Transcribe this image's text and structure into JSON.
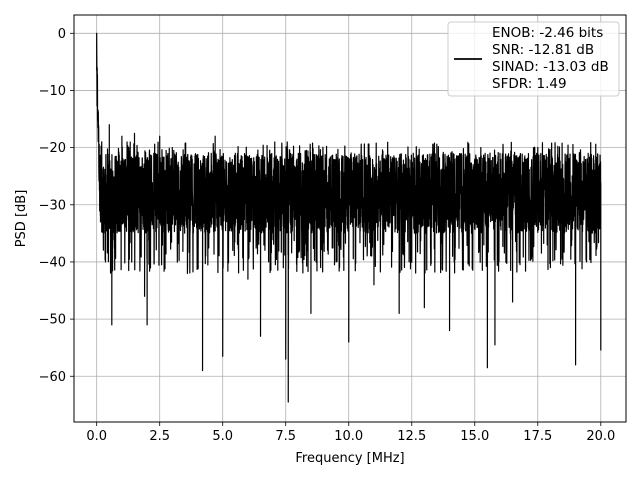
{
  "chart_data": {
    "type": "line",
    "title": "",
    "xlabel": "Frequency [MHz]",
    "ylabel": "PSD [dB]",
    "xlim": [
      -0.9,
      21.0
    ],
    "ylim": [
      -68.0,
      3.2
    ],
    "xticks": [
      0.0,
      2.5,
      5.0,
      7.5,
      10.0,
      12.5,
      15.0,
      17.5,
      20.0
    ],
    "xtick_labels": [
      "0.0",
      "2.5",
      "5.0",
      "7.5",
      "10.0",
      "12.5",
      "15.0",
      "17.5",
      "20.0"
    ],
    "yticks": [
      0,
      -10,
      -20,
      -30,
      -40,
      -50,
      -60
    ],
    "ytick_labels": [
      "0",
      "−10",
      "−20",
      "−30",
      "−40",
      "−50",
      "−60"
    ],
    "grid": true,
    "legend_position": "top-right",
    "series_color": "#000000",
    "series": [
      {
        "description_points": "dense noisy PSD trace; key extrema listed",
        "x": [
          0.0,
          0.02,
          0.05,
          0.1,
          0.15,
          0.2,
          0.35,
          0.5,
          0.6,
          1.0,
          1.5,
          1.9,
          2.0,
          2.5,
          3.0,
          3.6,
          4.2,
          4.7,
          5.0,
          5.5,
          6.0,
          6.5,
          7.0,
          7.5,
          7.6,
          8.0,
          8.5,
          9.0,
          9.5,
          10.0,
          10.5,
          11.0,
          12.0,
          13.0,
          14.0,
          15.0,
          15.5,
          15.8,
          16.0,
          16.5,
          17.0,
          17.5,
          18.0,
          18.5,
          19.0,
          19.5,
          20.0
        ],
        "y": [
          0.0,
          -6.0,
          -14.0,
          -23.0,
          -33.0,
          -19.0,
          -40.0,
          -16.0,
          -51.0,
          -18.0,
          -17.5,
          -46.0,
          -51.0,
          -18.0,
          -20.0,
          -42.0,
          -59.0,
          -18.0,
          -56.5,
          -21.0,
          -43.0,
          -53.0,
          -25.0,
          -57.0,
          -64.5,
          -21.0,
          -49.0,
          -26.0,
          -40.0,
          -54.0,
          -25.0,
          -44.0,
          -49.0,
          -48.0,
          -52.0,
          -22.0,
          -58.5,
          -54.5,
          -21.0,
          -47.0,
          -22.0,
          -20.0,
          -41.0,
          -36.0,
          -58.0,
          -21.0,
          -55.5
        ]
      }
    ],
    "legend": {
      "line_label": "ENOB: -2.46 bits\nSNR: -12.81 dB\nSINAD: -13.03 dB\nSFDR: 1.49",
      "lines": [
        "ENOB: -2.46 bits",
        "SNR: -12.81 dB",
        "SINAD: -13.03 dB",
        "SFDR: 1.49"
      ]
    }
  }
}
